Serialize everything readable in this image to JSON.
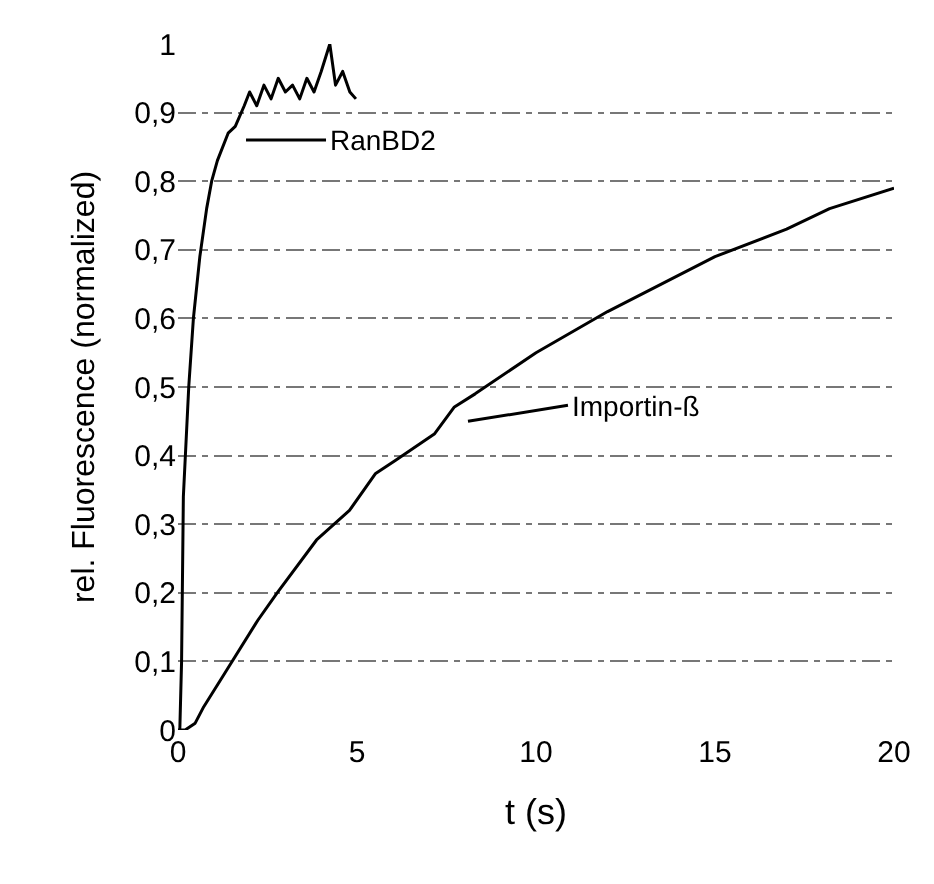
{
  "chart_data": {
    "type": "line",
    "xlabel": "t (s)",
    "ylabel": "rel. Fluorescence (normalized)",
    "xlim": [
      0,
      20
    ],
    "xticks": [
      0,
      5,
      10,
      15,
      20
    ],
    "ylim": [
      0,
      1
    ],
    "yticks": [
      0,
      {
        "value": 0.1,
        "label": "0,1"
      },
      {
        "value": 0.2,
        "label": "0,2"
      },
      {
        "value": 0.3,
        "label": "0,3"
      },
      {
        "value": 0.4,
        "label": "0,4"
      },
      {
        "value": 0.5,
        "label": "0,5"
      },
      {
        "value": 0.6,
        "label": "0,6"
      },
      {
        "value": 0.7,
        "label": "0,7"
      },
      {
        "value": 0.8,
        "label": "0,8"
      },
      {
        "value": 0.9,
        "label": "0,9"
      },
      1
    ],
    "grid": "y",
    "marker": "none",
    "line_style": "solid",
    "series": [
      {
        "color": "#000000",
        "x": [
          0.05,
          0.1,
          0.15,
          0.3,
          0.43,
          0.61,
          0.8,
          0.94,
          1.1,
          1.4,
          1.6,
          1.85,
          2.0,
          2.2,
          2.4,
          2.6,
          2.8,
          3.0,
          3.2,
          3.4,
          3.6,
          3.8,
          4.0,
          4.24,
          4.4,
          4.6,
          4.8,
          4.97
        ],
        "values": [
          0,
          0.1,
          0.34,
          0.5,
          0.6,
          0.69,
          0.76,
          0.8,
          0.83,
          0.87,
          0.88,
          0.91,
          0.93,
          0.91,
          0.94,
          0.92,
          0.95,
          0.93,
          0.94,
          0.92,
          0.95,
          0.93,
          0.96,
          1.0,
          0.94,
          0.96,
          0.93,
          0.92
        ]
      },
      {
        "color": "#000000",
        "x": [
          0,
          0.2,
          0.48,
          0.72,
          1.31,
          2.23,
          2.77,
          3.87,
          4.79,
          5.52,
          6.07,
          7.17,
          7.72,
          8.3,
          10,
          12,
          15,
          17,
          18.2,
          20
        ],
        "values": [
          0,
          0,
          0.01,
          0.034,
          0.083,
          0.16,
          0.2,
          0.277,
          0.32,
          0.374,
          0.393,
          0.432,
          0.471,
          0.49,
          0.55,
          0.61,
          0.69,
          0.73,
          0.76,
          0.79
        ]
      }
    ],
    "annotations": [
      "RanBD2",
      "Importin-ß"
    ]
  }
}
